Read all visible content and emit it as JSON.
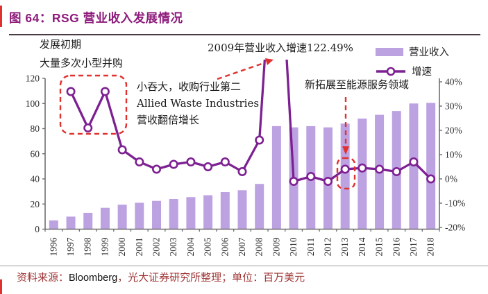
{
  "figure": {
    "title": "图 64：RSG 营业收入发展情况"
  },
  "annotations": {
    "early_stage_line1": "发展初期",
    "early_stage_line2": "大量多次小型并购",
    "growth_2009": "2009年营业收入增速122.49%",
    "acquisition_line1": "小吞大，收购行业第二",
    "acquisition_line2": "Allied Waste Industries，",
    "acquisition_line3": "营收翻倍增长",
    "energy_expansion": "新拓展至能源服务领域"
  },
  "footer": {
    "source_label": "资料来源：",
    "source_value": "Bloomberg",
    "source_rest": "，光大证券研究所整理；单位：百万美元"
  },
  "colors": {
    "accent_red": "#e0312e",
    "bar_fill": "#bda2e2",
    "line_purple": "#7d2092",
    "title_purple": "#8e1c7c",
    "footer_red": "#a03636"
  },
  "chart_data": {
    "type": "bar",
    "subtype": "bar+line combo",
    "title": "图 64：RSG 营业收入发展情况",
    "unit": "百万美元",
    "categories": [
      "1996",
      "1997",
      "1998",
      "1999",
      "2000",
      "2001",
      "2002",
      "2003",
      "2004",
      "2005",
      "2006",
      "2007",
      "2008",
      "2009",
      "2010",
      "2011",
      "2012",
      "2013",
      "2014",
      "2015",
      "2016",
      "2017",
      "2018"
    ],
    "series": [
      {
        "name": "营业收入",
        "type": "bar",
        "axis": "left",
        "color": "#bda2e2",
        "values": [
          7,
          10,
          13,
          17,
          19.5,
          21,
          22.5,
          24,
          25.5,
          27,
          29.5,
          31,
          36,
          82,
          81,
          82,
          81,
          84,
          88,
          91,
          94,
          100,
          100.5
        ]
      },
      {
        "name": "增速",
        "type": "line",
        "axis": "right",
        "color": "#7d2092",
        "values_pct": [
          null,
          36,
          21,
          36,
          12,
          7,
          4,
          6,
          7,
          5,
          7,
          3,
          16,
          122.49,
          -1,
          1,
          -1,
          4,
          4.5,
          4,
          3,
          7,
          0
        ]
      }
    ],
    "left_axis": {
      "min": 0,
      "max": 120,
      "ticks": [
        0,
        20,
        40,
        60,
        80,
        100,
        120
      ]
    },
    "right_axis": {
      "min": -20,
      "max": 40,
      "ticks": [
        "40%",
        "30%",
        "20%",
        "10%",
        "0%",
        "-10%",
        "-20%"
      ]
    },
    "grid": false,
    "legend_position": "top-right"
  }
}
